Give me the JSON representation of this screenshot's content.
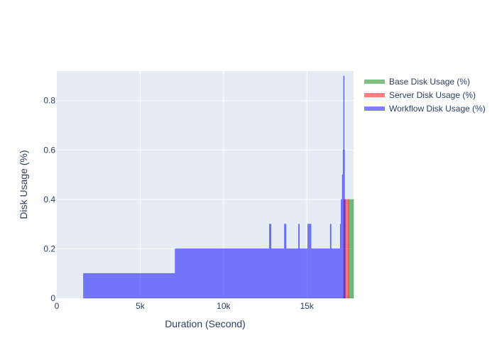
{
  "chart_data": {
    "type": "area",
    "title": "",
    "xlabel": "Duration (Second)",
    "ylabel": "Disk Usage (%)",
    "xlim": [
      0,
      17800
    ],
    "ylim": [
      0,
      0.92
    ],
    "x_ticks": [
      {
        "value": 0,
        "label": "0"
      },
      {
        "value": 5000,
        "label": "5k"
      },
      {
        "value": 10000,
        "label": "10k"
      },
      {
        "value": 15000,
        "label": "15k"
      }
    ],
    "y_ticks": [
      {
        "value": 0,
        "label": "0"
      },
      {
        "value": 0.2,
        "label": "0.2"
      },
      {
        "value": 0.4,
        "label": "0.4"
      },
      {
        "value": 0.6,
        "label": "0.6"
      },
      {
        "value": 0.8,
        "label": "0.8"
      }
    ],
    "grid": true,
    "legend_position": "top-right",
    "series": [
      {
        "name": "Base Disk Usage (%)",
        "color": "#008000",
        "points": [
          [
            17500,
            0
          ],
          [
            17500,
            0.4
          ],
          [
            17800,
            0.4
          ],
          [
            17800,
            0
          ]
        ]
      },
      {
        "name": "Server Disk Usage (%)",
        "color": "#ff0000",
        "points": [
          [
            17200,
            0
          ],
          [
            17200,
            0.4
          ],
          [
            17500,
            0.4
          ],
          [
            17500,
            0
          ]
        ]
      },
      {
        "name": "Workflow Disk Usage (%)",
        "color": "#0000ff",
        "points": [
          [
            1600,
            0
          ],
          [
            1600,
            0.1
          ],
          [
            7100,
            0.1
          ],
          [
            7100,
            0.2
          ],
          [
            12750,
            0.2
          ],
          [
            12750,
            0.3
          ],
          [
            12850,
            0.3
          ],
          [
            12850,
            0.2
          ],
          [
            13650,
            0.2
          ],
          [
            13650,
            0.3
          ],
          [
            13750,
            0.3
          ],
          [
            13750,
            0.2
          ],
          [
            14500,
            0.2
          ],
          [
            14500,
            0.3
          ],
          [
            14550,
            0.3
          ],
          [
            14550,
            0.2
          ],
          [
            15050,
            0.2
          ],
          [
            15050,
            0.3
          ],
          [
            15250,
            0.3
          ],
          [
            15250,
            0.2
          ],
          [
            16400,
            0.2
          ],
          [
            16400,
            0.3
          ],
          [
            16450,
            0.3
          ],
          [
            16450,
            0.2
          ],
          [
            17000,
            0.2
          ],
          [
            17000,
            0.3
          ],
          [
            17050,
            0.3
          ],
          [
            17050,
            0.4
          ],
          [
            17120,
            0.4
          ],
          [
            17120,
            0.5
          ],
          [
            17170,
            0.5
          ],
          [
            17170,
            0.6
          ],
          [
            17200,
            0.6
          ],
          [
            17200,
            0.9
          ],
          [
            17230,
            0.9
          ],
          [
            17230,
            0.6
          ],
          [
            17260,
            0.6
          ],
          [
            17260,
            0.4
          ],
          [
            17300,
            0.4
          ],
          [
            17300,
            0
          ]
        ]
      }
    ]
  }
}
